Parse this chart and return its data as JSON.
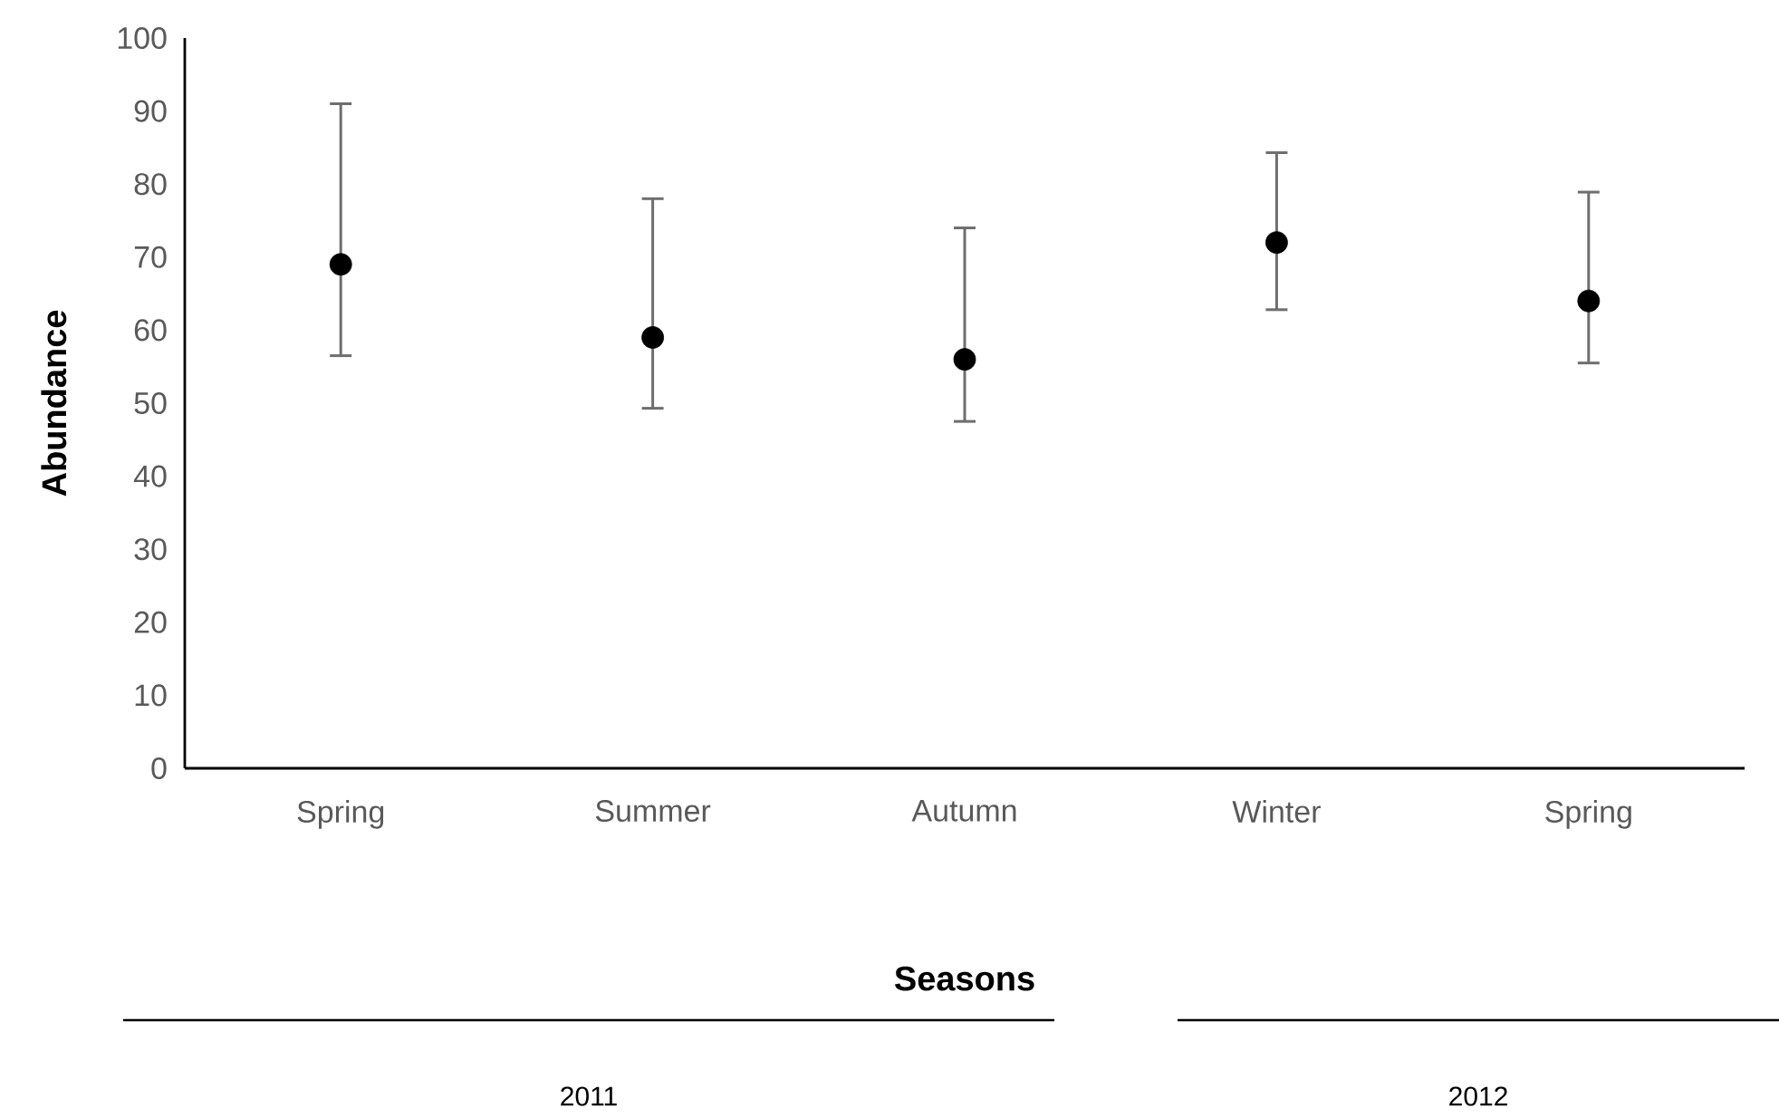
{
  "chart_data": {
    "type": "scatter",
    "xlabel": "Seasons",
    "ylabel": "Abundance",
    "categories": [
      "Spring",
      "Summer",
      "Autumn",
      "Winter",
      "Spring"
    ],
    "series": [
      {
        "color": "#000000",
        "values": [
          69,
          59,
          56,
          72,
          64
        ],
        "errors": [
          [
            56.5,
            91
          ],
          [
            49.3,
            78
          ],
          [
            47.5,
            74
          ],
          [
            62.8,
            84.3
          ],
          [
            55.5,
            78.9
          ]
        ]
      }
    ],
    "ylim": [
      0,
      100
    ],
    "yticks": [
      0,
      10,
      20,
      30,
      40,
      50,
      60,
      70,
      80,
      90,
      100
    ],
    "grid": false,
    "marker": "circle",
    "annotations": [
      "2011",
      "2012"
    ]
  }
}
